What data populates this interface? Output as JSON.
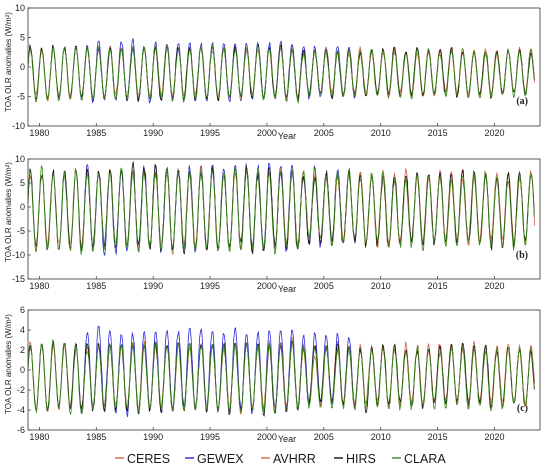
{
  "chart_data": [
    {
      "type": "line",
      "panel_label": "(a)",
      "xlabel": "Year",
      "ylabel": "TOA OLR anomalies (W/m²)",
      "xlim": [
        1979,
        2024
      ],
      "ylim": [
        -10,
        10
      ],
      "yticks": [
        -10,
        -5,
        0,
        5,
        10
      ],
      "xticks": [
        1980,
        1985,
        1990,
        1995,
        2000,
        2005,
        2010,
        2015,
        2020
      ],
      "grid": false,
      "seasonal": {
        "amplitude": 3.8,
        "offset": -1.0,
        "peak_month": 3
      },
      "series": [
        {
          "name": "CERES",
          "color": "#d6604d",
          "start": 2000.2,
          "end": 2023.5,
          "amplitude_scale": 1.0,
          "shift": 0.2
        },
        {
          "name": "GEWEX",
          "color": "#2b2bd6",
          "start": 1983.5,
          "end": 2007.9,
          "amplitude_scale": 1.1,
          "shift": 0.3
        },
        {
          "name": "AVHRR",
          "color": "#c9713a",
          "start": 1979.0,
          "end": 2023.5,
          "amplitude_scale": 0.95,
          "shift": 0.0
        },
        {
          "name": "HIRS",
          "color": "#111111",
          "start": 1979.0,
          "end": 2023.5,
          "amplitude_scale": 1.0,
          "shift": 0.0
        },
        {
          "name": "CLARA",
          "color": "#3a8a1e",
          "start": 1979.0,
          "end": 2023.5,
          "amplitude_scale": 1.0,
          "shift": -0.1
        }
      ]
    },
    {
      "type": "line",
      "panel_label": "(b)",
      "xlabel": "Year",
      "ylabel": "TOA OLR anomalies (W/m²)",
      "xlim": [
        1979,
        2024
      ],
      "ylim": [
        -15,
        10
      ],
      "yticks": [
        -15,
        -10,
        -5,
        0,
        5,
        10
      ],
      "xticks": [
        1980,
        1985,
        1990,
        1995,
        2000,
        2005,
        2010,
        2015,
        2020
      ],
      "grid": false,
      "seasonal": {
        "amplitude": 7.2,
        "offset": -0.5,
        "peak_month": 3
      },
      "series": [
        {
          "name": "CERES",
          "color": "#d6604d",
          "start": 2000.2,
          "end": 2023.5,
          "amplitude_scale": 1.0,
          "shift": 0.2
        },
        {
          "name": "GEWEX",
          "color": "#2b2bd6",
          "start": 1983.5,
          "end": 2007.9,
          "amplitude_scale": 1.05,
          "shift": 0.2
        },
        {
          "name": "AVHRR",
          "color": "#c9713a",
          "start": 1979.0,
          "end": 2023.5,
          "amplitude_scale": 0.97,
          "shift": 0.0
        },
        {
          "name": "HIRS",
          "color": "#111111",
          "start": 1979.0,
          "end": 2023.5,
          "amplitude_scale": 1.0,
          "shift": 0.0
        },
        {
          "name": "CLARA",
          "color": "#3a8a1e",
          "start": 1979.0,
          "end": 2023.5,
          "amplitude_scale": 1.0,
          "shift": -0.1
        }
      ]
    },
    {
      "type": "line",
      "panel_label": "(c)",
      "xlabel": "Year",
      "ylabel": "TOA OLR anomalies (W/m²)",
      "xlim": [
        1979,
        2024
      ],
      "ylim": [
        -6,
        6
      ],
      "yticks": [
        -6,
        -4,
        -2,
        0,
        2,
        4,
        6
      ],
      "xticks": [
        1980,
        1985,
        1990,
        1995,
        2000,
        2005,
        2010,
        2015,
        2020
      ],
      "grid": false,
      "seasonal": {
        "amplitude": 2.9,
        "offset": -0.6,
        "peak_month": 3
      },
      "series": [
        {
          "name": "CERES",
          "color": "#d6604d",
          "start": 2000.2,
          "end": 2023.5,
          "amplitude_scale": 1.0,
          "shift": 0.15
        },
        {
          "name": "GEWEX",
          "color": "#2b2bd6",
          "start": 1983.5,
          "end": 2007.9,
          "amplitude_scale": 1.2,
          "shift": 0.5
        },
        {
          "name": "AVHRR",
          "color": "#c9713a",
          "start": 1979.0,
          "end": 2023.5,
          "amplitude_scale": 0.95,
          "shift": 0.0
        },
        {
          "name": "HIRS",
          "color": "#111111",
          "start": 1979.0,
          "end": 2023.5,
          "amplitude_scale": 1.0,
          "shift": -0.1
        },
        {
          "name": "CLARA",
          "color": "#3a8a1e",
          "start": 1979.0,
          "end": 2023.5,
          "amplitude_scale": 1.0,
          "shift": -0.2
        }
      ]
    }
  ],
  "legend": {
    "placement": "bottom-center",
    "entries": [
      {
        "name": "CERES",
        "color": "#d6604d"
      },
      {
        "name": "GEWEX",
        "color": "#2b2bd6"
      },
      {
        "name": "AVHRR",
        "color": "#c9713a"
      },
      {
        "name": "HIRS",
        "color": "#111111"
      },
      {
        "name": "CLARA",
        "color": "#3a8a1e"
      }
    ]
  }
}
